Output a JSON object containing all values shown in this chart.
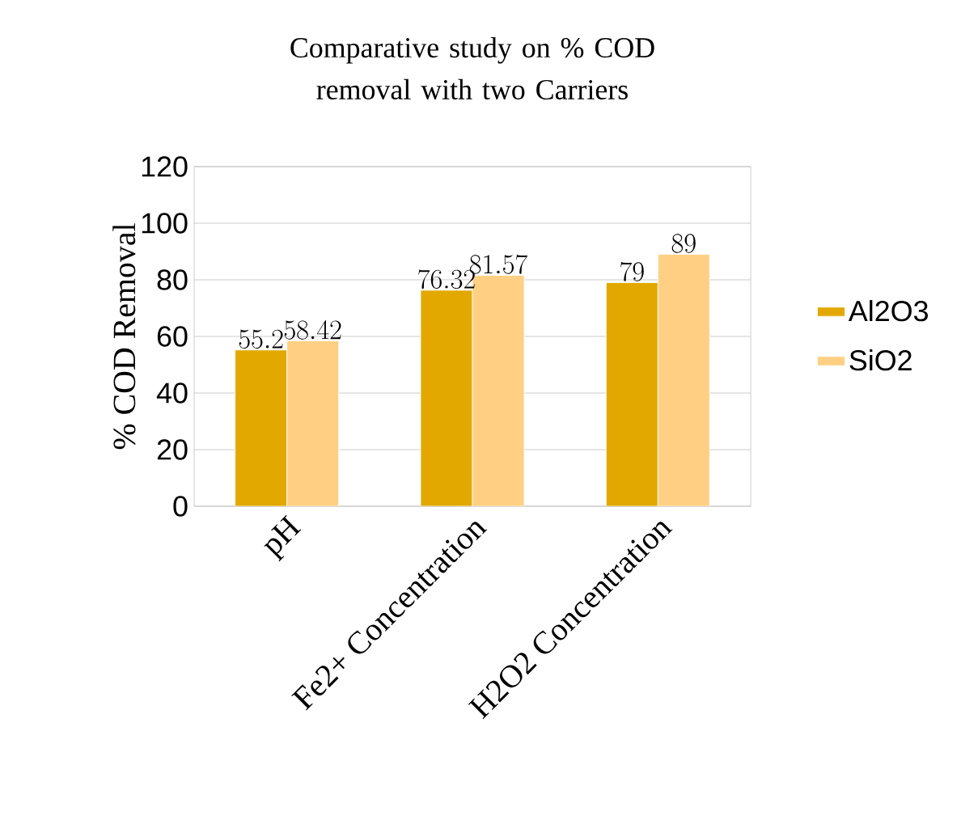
{
  "chart_data": {
    "type": "bar",
    "title": "Comparative study on % COD removal with two Carriers",
    "ylabel": "% COD Removal",
    "categories": [
      "pH",
      "Fe2+ Concentration",
      "H2O2 Concentration"
    ],
    "series": [
      {
        "name": "Al2O3",
        "color": "#e3a800",
        "values": [
          55.2,
          76.32,
          79
        ]
      },
      {
        "name": "SiO2",
        "color": "#ffd083",
        "values": [
          58.42,
          81.57,
          89
        ]
      }
    ],
    "ylim": [
      0,
      120
    ],
    "yticks": [
      0,
      20,
      40,
      60,
      80,
      100,
      120
    ],
    "grid": "y",
    "legend": "right",
    "data_labels": true
  }
}
